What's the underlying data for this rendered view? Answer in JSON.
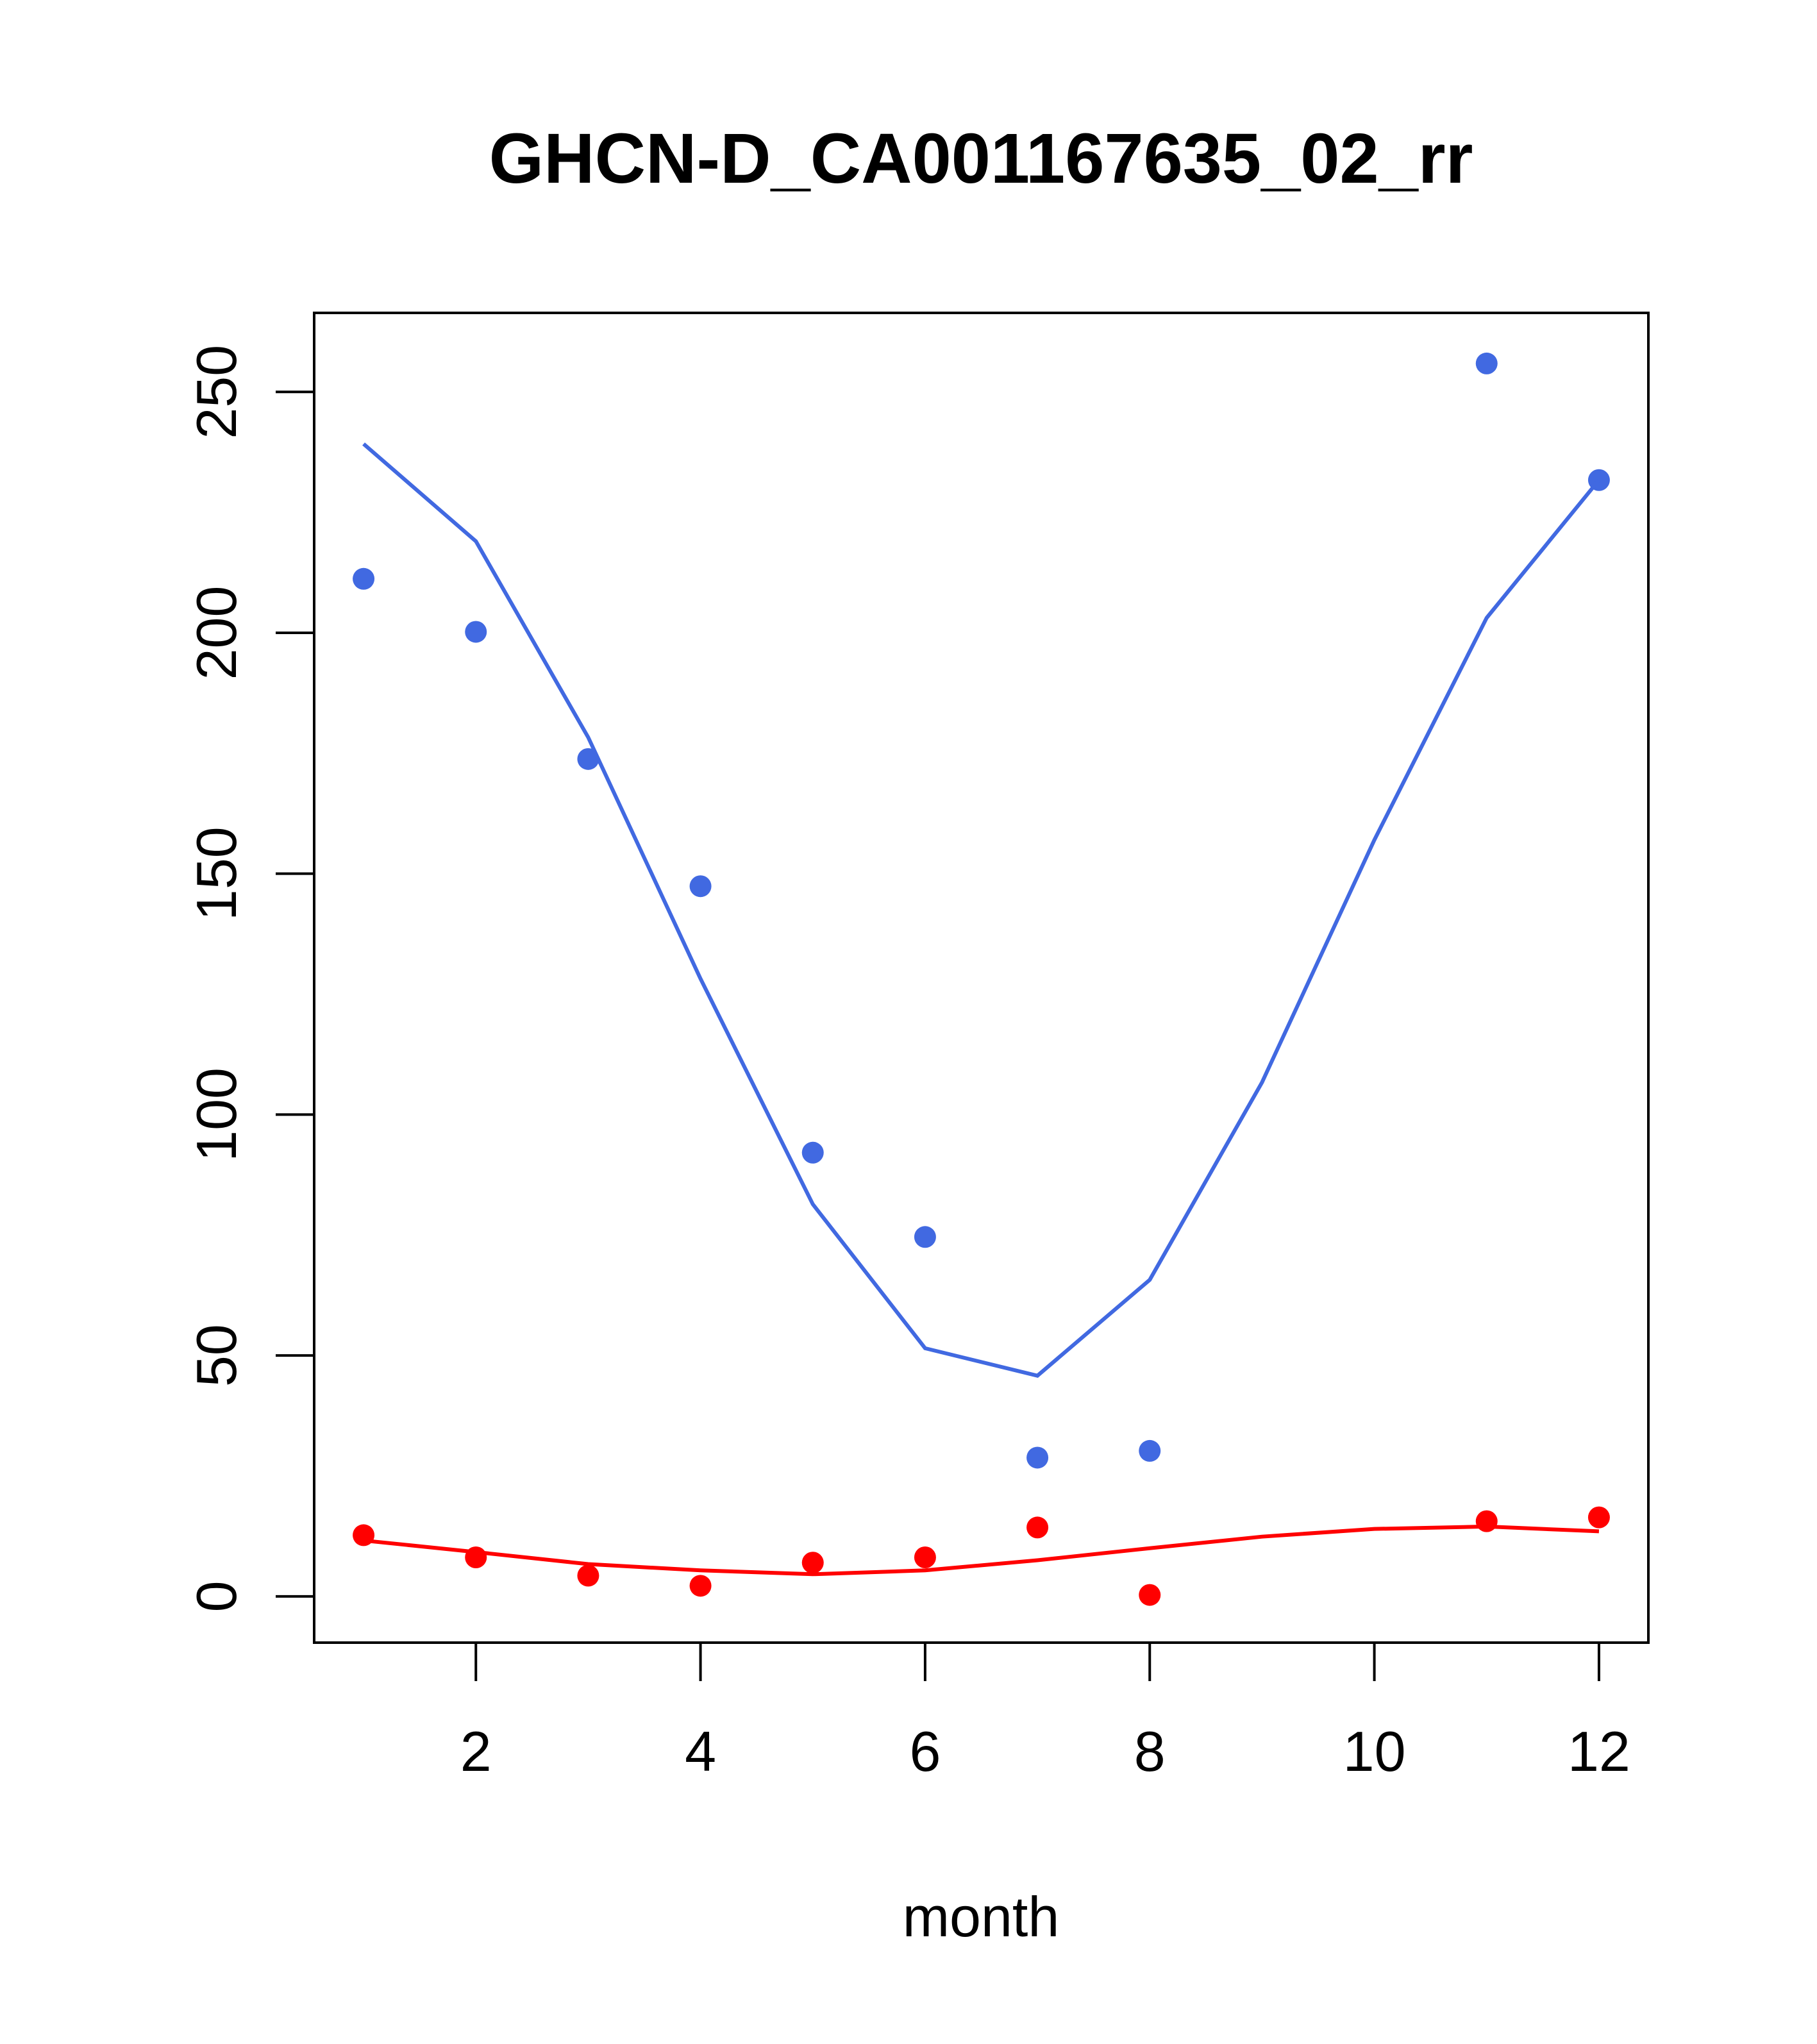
{
  "chart_data": {
    "type": "scatter",
    "title": "GHCN-D_CA001167635_02_rr",
    "xlabel": "month",
    "ylabel": "",
    "xlim": [
      0.56,
      12.44
    ],
    "ylim": [
      -9.6,
      266.4
    ],
    "x_ticks": [
      2,
      4,
      6,
      8,
      10,
      12
    ],
    "y_ticks": [
      0,
      50,
      100,
      150,
      200,
      250
    ],
    "grid": false,
    "series": [
      {
        "name": "blue-points",
        "kind": "points",
        "color": "#4169E1",
        "x": [
          1,
          2,
          3,
          4,
          5,
          6,
          7,
          8,
          11,
          12
        ],
        "y": [
          211.2,
          200.2,
          173.8,
          147.4,
          92.1,
          74.6,
          28.8,
          30.2,
          255.9,
          231.7
        ]
      },
      {
        "name": "blue-line",
        "kind": "line",
        "color": "#4169E1",
        "x": [
          1,
          2,
          3,
          4,
          5,
          6,
          7,
          8,
          9,
          10,
          11,
          12
        ],
        "y": [
          239.2,
          219.0,
          178.3,
          128.2,
          81.4,
          51.5,
          45.8,
          65.7,
          106.7,
          157.0,
          203.1,
          231.7
        ]
      },
      {
        "name": "red-points",
        "kind": "points",
        "color": "#FF0000",
        "x": [
          1,
          2,
          3,
          4,
          5,
          6,
          7,
          8,
          11,
          12
        ],
        "y": [
          12.7,
          8.1,
          4.3,
          2.2,
          7.0,
          8.1,
          14.3,
          0.3,
          15.6,
          16.4
        ]
      },
      {
        "name": "red-line",
        "kind": "line",
        "color": "#FF0000",
        "x": [
          1,
          2,
          3,
          4,
          5,
          6,
          7,
          8,
          9,
          10,
          11,
          12
        ],
        "y": [
          11.6,
          9.2,
          6.7,
          5.4,
          4.6,
          5.4,
          7.5,
          10.0,
          12.4,
          14.0,
          14.5,
          13.5
        ]
      }
    ]
  }
}
